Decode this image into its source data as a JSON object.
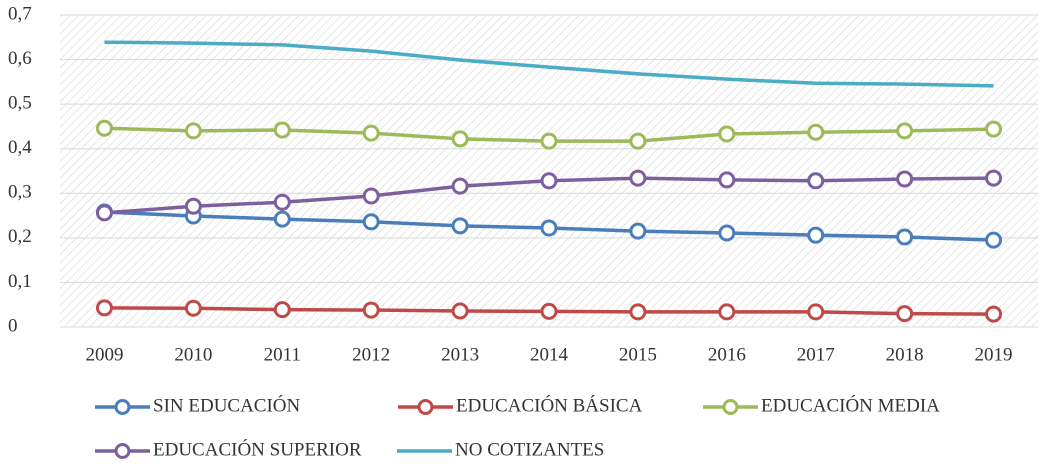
{
  "chart_data": {
    "type": "line",
    "categories": [
      "2009",
      "2010",
      "2011",
      "2012",
      "2013",
      "2014",
      "2015",
      "2016",
      "2017",
      "2018",
      "2019"
    ],
    "ylim": [
      0,
      0.7
    ],
    "yticks": [
      0,
      {
        "value": 0.1,
        "label": "0,1"
      },
      {
        "value": 0.2,
        "label": "0,2"
      },
      {
        "value": 0.3,
        "label": "0,3"
      },
      {
        "value": 0.4,
        "label": "0,4"
      },
      {
        "value": 0.5,
        "label": "0,5"
      },
      {
        "value": 0.6,
        "label": "0,6"
      },
      {
        "value": 0.7,
        "label": "0,7"
      }
    ],
    "grid": true,
    "legend": "bottom",
    "series": [
      {
        "name": "SIN EDUCACIÓN",
        "color": "#4a7ebb",
        "marker": true,
        "values": [
          0.258,
          0.249,
          0.242,
          0.236,
          0.227,
          0.222,
          0.215,
          0.211,
          0.206,
          0.202,
          0.195
        ]
      },
      {
        "name": "EDUCACIÓN BÁSICA",
        "color": "#be4b48",
        "marker": true,
        "values": [
          0.043,
          0.042,
          0.039,
          0.038,
          0.036,
          0.035,
          0.034,
          0.034,
          0.034,
          0.03,
          0.029
        ]
      },
      {
        "name": "EDUCACIÓN MEDIA",
        "color": "#9bbb59",
        "marker": true,
        "values": [
          0.446,
          0.44,
          0.442,
          0.435,
          0.422,
          0.417,
          0.417,
          0.433,
          0.437,
          0.44,
          0.444
        ]
      },
      {
        "name": "EDUCACIÓN SUPERIOR",
        "color": "#7d5fa0",
        "marker": true,
        "values": [
          0.256,
          0.271,
          0.28,
          0.294,
          0.316,
          0.328,
          0.334,
          0.33,
          0.328,
          0.332,
          0.334
        ]
      },
      {
        "name": "NO COTIZANTES",
        "color": "#4bacc6",
        "marker": false,
        "values": [
          0.639,
          0.637,
          0.633,
          0.619,
          0.599,
          0.583,
          0.568,
          0.556,
          0.547,
          0.545,
          0.541
        ]
      }
    ]
  }
}
